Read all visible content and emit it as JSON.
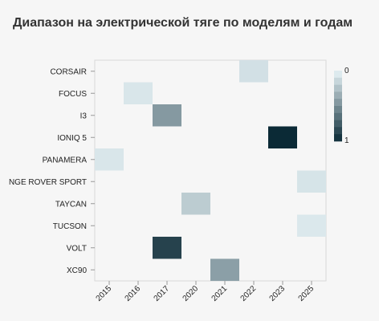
{
  "chart_data": {
    "type": "heatmap",
    "title": "Диапазон на электрической тяге по моделям и годам",
    "rows": [
      "CORSAIR",
      "FOCUS",
      "I3",
      "IONIQ 5",
      "PANAMERA",
      "NGE ROVER SPORT",
      "TAYCAN",
      "TUCSON",
      "VOLT",
      "XC90"
    ],
    "columns": [
      "2015",
      "2016",
      "2017",
      "2020",
      "2021",
      "2022",
      "2023",
      "2025"
    ],
    "cells": [
      {
        "row": "CORSAIR",
        "col": "2022",
        "value": 0.1
      },
      {
        "row": "FOCUS",
        "col": "2016",
        "value": 0.07
      },
      {
        "row": "I3",
        "col": "2017",
        "value": 0.45
      },
      {
        "row": "IONIQ 5",
        "col": "2023",
        "value": 1.0
      },
      {
        "row": "PANAMERA",
        "col": "2015",
        "value": 0.07
      },
      {
        "row": "NGE ROVER SPORT",
        "col": "2025",
        "value": 0.08
      },
      {
        "row": "TAYCAN",
        "col": "2020",
        "value": 0.2
      },
      {
        "row": "TUCSON",
        "col": "2025",
        "value": 0.06
      },
      {
        "row": "VOLT",
        "col": "2017",
        "value": 0.88
      },
      {
        "row": "XC90",
        "col": "2021",
        "value": 0.42
      }
    ],
    "color_scale": {
      "min": 0,
      "max": 1,
      "min_color": "#e8f4f8",
      "max_color": "#0b2a36"
    },
    "legend": {
      "min_label": "0",
      "max_label": "1",
      "position": "right"
    }
  }
}
